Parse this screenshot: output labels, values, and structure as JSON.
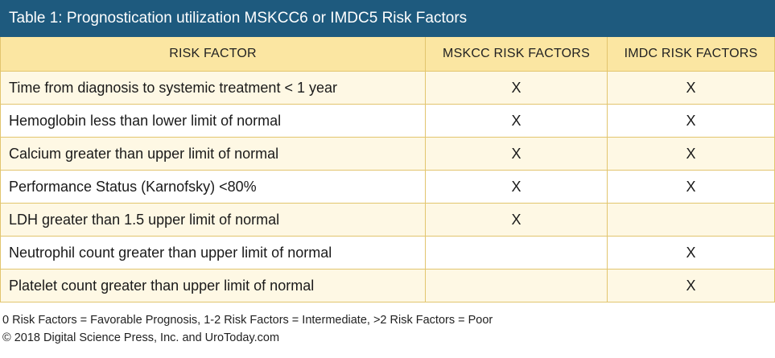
{
  "table": {
    "title": "Table 1: Prognostication utilization MSKCC6 or IMDC5 Risk Factors",
    "headers": [
      "RISK FACTOR",
      "MSKCC RISK FACTORS",
      "IMDC RISK FACTORS"
    ],
    "rows": [
      {
        "factor": "Time from diagnosis to systemic treatment < 1 year",
        "mskcc": "X",
        "imdc": "X"
      },
      {
        "factor": "Hemoglobin less than lower limit of normal",
        "mskcc": "X",
        "imdc": "X"
      },
      {
        "factor": "Calcium greater than upper limit of normal",
        "mskcc": "X",
        "imdc": "X"
      },
      {
        "factor": "Performance Status (Karnofsky) <80%",
        "mskcc": "X",
        "imdc": "X"
      },
      {
        "factor": "LDH greater than 1.5 upper limit of normal",
        "mskcc": "X",
        "imdc": ""
      },
      {
        "factor": "Neutrophil count greater than upper limit of normal",
        "mskcc": "",
        "imdc": "X"
      },
      {
        "factor": "Platelet count greater than upper limit of normal",
        "mskcc": "",
        "imdc": "X"
      }
    ]
  },
  "footnotes": {
    "legend": "0 Risk Factors = Favorable Prognosis, 1-2 Risk Factors = Intermediate, >2 Risk Factors = Poor",
    "copyright": "© 2018 Digital Science Press, Inc. and UroToday.com"
  },
  "colors": {
    "title_bar": "#1e5a7e",
    "header_row": "#fbe6a2",
    "stripe_row": "#fef8e4",
    "border": "#e2c56e"
  }
}
